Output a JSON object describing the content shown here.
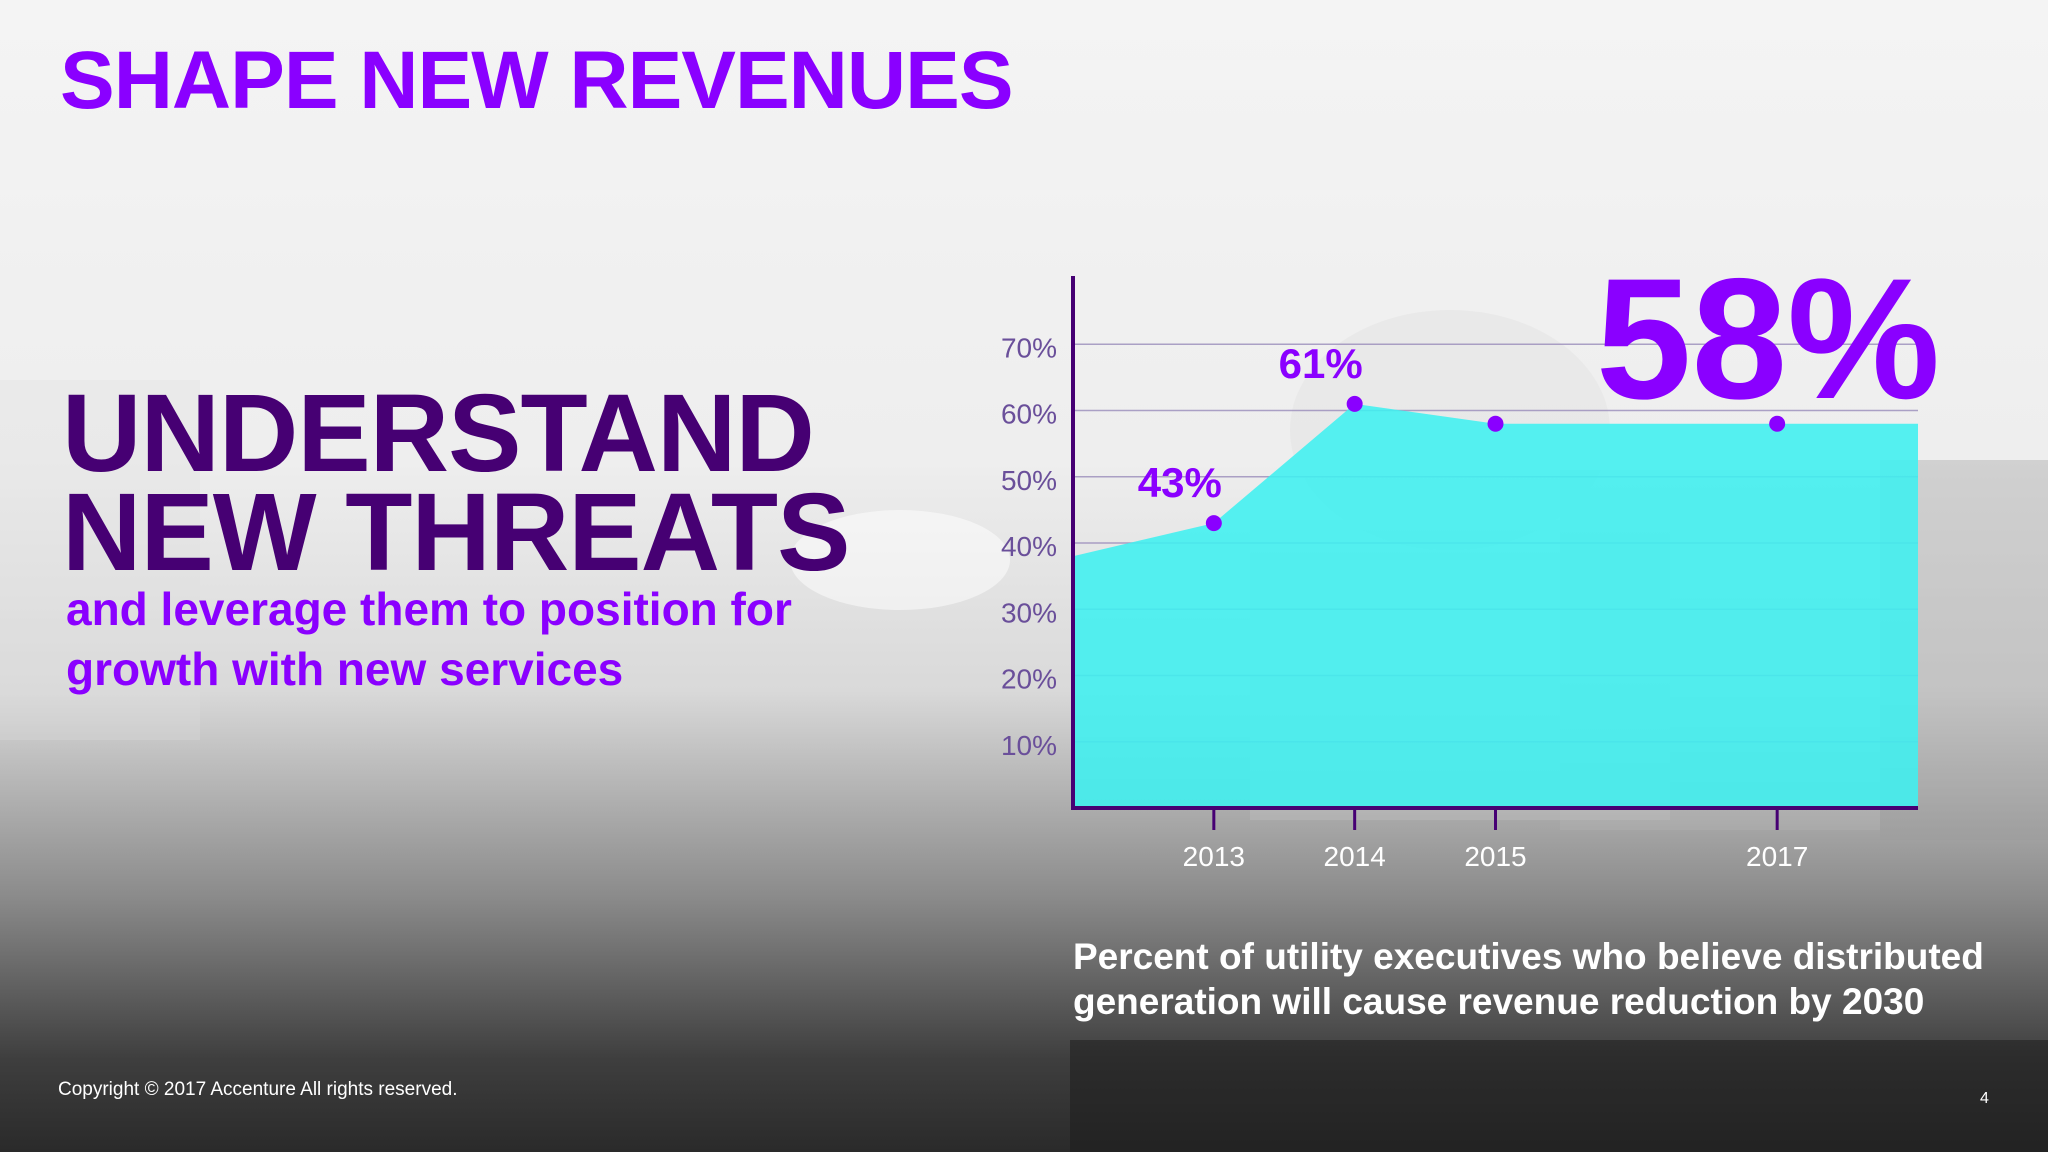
{
  "slide": {
    "title": "SHAPE NEW REVENUES",
    "headline": [
      "UNDERSTAND",
      "NEW THREATS"
    ],
    "subhead": [
      "and leverage them to position for",
      "growth with new services"
    ],
    "caption": [
      "Percent of utility executives who believe distributed",
      "generation will cause revenue reduction by 2030"
    ],
    "copyright": "Copyright © 2017 Accenture  All rights reserved.",
    "page_number": "4"
  },
  "colors": {
    "title": "#8a00ff",
    "headline": "#460073",
    "area_fill": "#3ff0f0",
    "axis": "#460073",
    "point": "#8a00ff"
  },
  "chart_data": {
    "type": "area",
    "title": "",
    "xlabel": "",
    "ylabel": "",
    "x_ticks": [
      "2013",
      "2014",
      "2015",
      "2017"
    ],
    "y_ticks": [
      "10%",
      "20%",
      "30%",
      "40%",
      "50%",
      "60%",
      "70%"
    ],
    "ylim": [
      0,
      80
    ],
    "grid": true,
    "series": [
      {
        "points": [
          {
            "x": 2012,
            "y": 38
          },
          {
            "x": 2013,
            "y": 43,
            "label": "43%"
          },
          {
            "x": 2014,
            "y": 61,
            "label": "61%"
          },
          {
            "x": 2015,
            "y": 58
          },
          {
            "x": 2017,
            "y": 58
          },
          {
            "x": 2018,
            "y": 58
          }
        ]
      }
    ],
    "highlight_label": "58%"
  }
}
